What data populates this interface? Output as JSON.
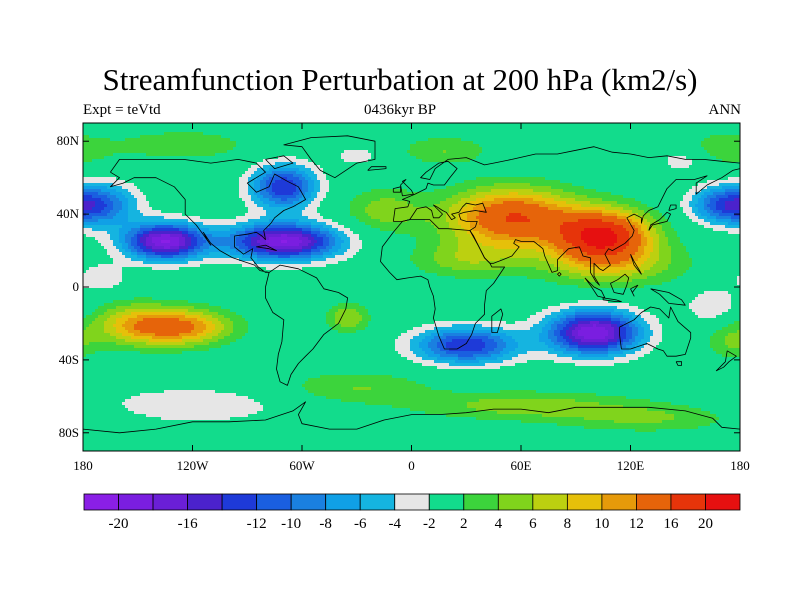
{
  "title": "Streamfunction Perturbation at 200 hPa (km2/s)",
  "left_subtitle": "Expt = teVtd",
  "center_subtitle": "0436kyr BP",
  "right_subtitle": "ANN",
  "map_extent": {
    "lon": [
      -180,
      180
    ],
    "lat": [
      -90,
      90
    ]
  },
  "lat_ticks": [
    {
      "value": 80,
      "label": "80N"
    },
    {
      "value": 40,
      "label": "40N"
    },
    {
      "value": 0,
      "label": "0"
    },
    {
      "value": -40,
      "label": "40S"
    },
    {
      "value": -80,
      "label": "80S"
    }
  ],
  "lon_ticks": [
    {
      "value": -180,
      "label": "180"
    },
    {
      "value": -120,
      "label": "120W"
    },
    {
      "value": -60,
      "label": "60W"
    },
    {
      "value": 0,
      "label": "0"
    },
    {
      "value": 60,
      "label": "60E"
    },
    {
      "value": 120,
      "label": "120E"
    },
    {
      "value": 180,
      "label": "180"
    }
  ],
  "colorbar": {
    "levels": [
      -20,
      -18,
      -16,
      -14,
      -12,
      -10,
      -8,
      -6,
      -4,
      -2,
      2,
      4,
      6,
      8,
      10,
      12,
      16,
      20
    ],
    "labels": [
      "-20",
      "-16",
      "-12",
      "-10",
      "-8",
      "-6",
      "-4",
      "-2",
      "2",
      "4",
      "6",
      "8",
      "10",
      "12",
      "16",
      "20"
    ],
    "colors": [
      "#8a1fe6",
      "#7a1ee0",
      "#6a1fd6",
      "#4b22cc",
      "#1e3ad8",
      "#1a5fe0",
      "#1a80e0",
      "#10a0e6",
      "#15b4e0",
      "#e6e6e6",
      "#12dc8c",
      "#3cd43c",
      "#80d41c",
      "#bcd010",
      "#e6c00a",
      "#e69a0a",
      "#e6640a",
      "#e6340a",
      "#e61010"
    ]
  },
  "field_centers": [
    {
      "lon": 55,
      "lat": 38,
      "value": 16,
      "rlon": 35,
      "rlat": 16
    },
    {
      "lon": 105,
      "lat": 28,
      "value": 20,
      "rlon": 26,
      "rlat": 14
    },
    {
      "lon": 110,
      "lat": 12,
      "value": 6,
      "rlon": 40,
      "rlat": 12
    },
    {
      "lon": -15,
      "lat": 42,
      "value": 5,
      "rlon": 22,
      "rlat": 12
    },
    {
      "lon": 30,
      "lat": 15,
      "value": 5,
      "rlon": 30,
      "rlat": 10
    },
    {
      "lon": -128,
      "lat": -22,
      "value": 13,
      "rlon": 28,
      "rlat": 10
    },
    {
      "lon": -155,
      "lat": -20,
      "value": 6,
      "rlon": 22,
      "rlat": 12
    },
    {
      "lon": -35,
      "lat": -17,
      "value": 6,
      "rlon": 12,
      "rlat": 8
    },
    {
      "lon": -30,
      "lat": -55,
      "value": 4,
      "rlon": 40,
      "rlat": 9
    },
    {
      "lon": 60,
      "lat": -65,
      "value": 5,
      "rlon": 60,
      "rlat": 8
    },
    {
      "lon": 130,
      "lat": -72,
      "value": 4,
      "rlon": 50,
      "rlat": 8
    },
    {
      "lon": 175,
      "lat": -30,
      "value": 4,
      "rlon": 14,
      "rlat": 10
    },
    {
      "lon": 170,
      "lat": 75,
      "value": 4,
      "rlon": 25,
      "rlat": 10
    },
    {
      "lon": -125,
      "lat": 78,
      "value": 4,
      "rlon": 35,
      "rlat": 8
    },
    {
      "lon": 18,
      "lat": 75,
      "value": 4,
      "rlon": 24,
      "rlat": 8
    },
    {
      "lon": -135,
      "lat": 25,
      "value": -20,
      "rlon": 22,
      "rlat": 10
    },
    {
      "lon": -70,
      "lat": 25,
      "value": -20,
      "rlon": 30,
      "rlat": 10
    },
    {
      "lon": -70,
      "lat": 55,
      "value": -14,
      "rlon": 18,
      "rlat": 12
    },
    {
      "lon": 100,
      "lat": -25,
      "value": -20,
      "rlon": 25,
      "rlat": 12
    },
    {
      "lon": 30,
      "lat": -32,
      "value": -14,
      "rlon": 28,
      "rlat": 10
    },
    {
      "lon": -170,
      "lat": 45,
      "value": -10,
      "rlon": 20,
      "rlat": 12
    },
    {
      "lon": 170,
      "lat": 45,
      "value": -10,
      "rlon": 18,
      "rlat": 10
    },
    {
      "lon": -120,
      "lat": -65,
      "value": -4,
      "rlon": 50,
      "rlat": 10
    },
    {
      "lon": 165,
      "lat": -10,
      "value": -4,
      "rlon": 15,
      "rlat": 10
    },
    {
      "lon": -170,
      "lat": 5,
      "value": -4,
      "rlon": 14,
      "rlat": 8
    },
    {
      "lon": 150,
      "lat": 70,
      "value": -4,
      "rlon": 16,
      "rlat": 8
    },
    {
      "lon": -30,
      "lat": 72,
      "value": -3,
      "rlon": 14,
      "rlat": 6
    }
  ]
}
